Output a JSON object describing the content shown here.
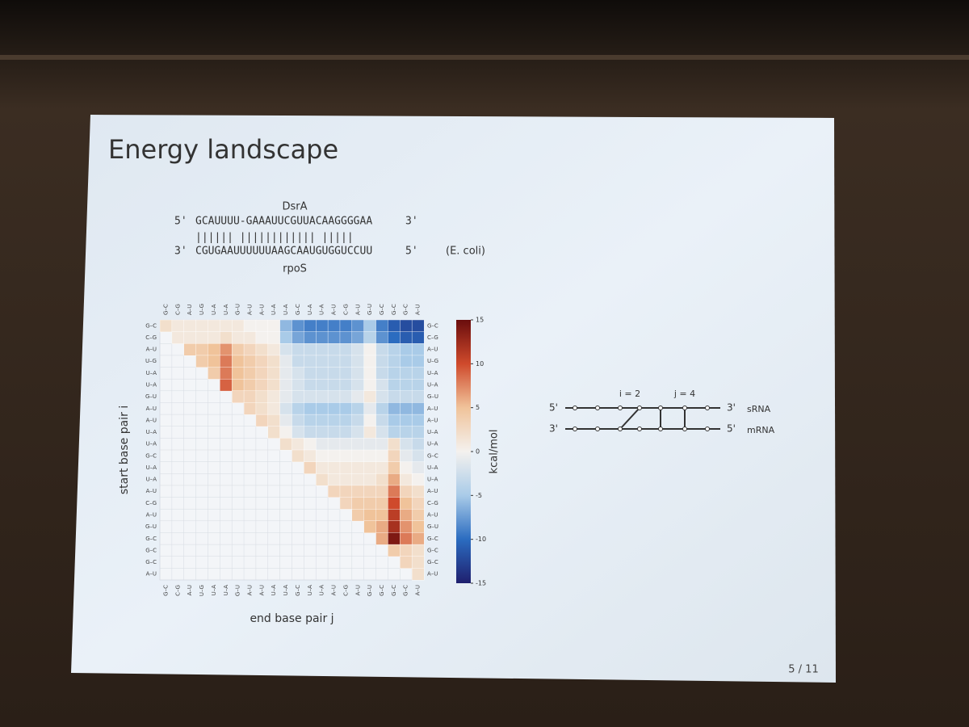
{
  "slide": {
    "title": "Energy landscape",
    "page": "5 / 11",
    "duplex": {
      "top_name": "DsrA",
      "top_5": "5'",
      "top_seq": "GCAUUUU-GAAAUUCGUUACAAGGGGAA",
      "top_3": "3'",
      "pairs": "||||||  ||||||||||||  |||||",
      "bottom_3": "3'",
      "bottom_seq": "CGUGAAUUUUUUAAGCAAUGUGGUCCUU",
      "bottom_5": "5'",
      "organism": "(E. coli)",
      "bottom_name": "rpoS"
    },
    "diagram": {
      "i_label": "i = 2",
      "j_label": "j = 4",
      "top_left": "5'",
      "top_right": "3'",
      "top_name": "sRNA",
      "bottom_left": "3'",
      "bottom_right": "5'",
      "bottom_name": "mRNA"
    }
  },
  "chart_data": {
    "type": "heatmap",
    "xlabel": "end base pair j",
    "ylabel": "start base pair i",
    "categories": [
      "G–C",
      "C–G",
      "A–U",
      "U–G",
      "U–A",
      "U–A",
      "G–U",
      "A–U",
      "A–U",
      "U–A",
      "U–A",
      "G–C",
      "U–A",
      "U–A",
      "A–U",
      "C–G",
      "A–U",
      "G–U",
      "G–C",
      "G–C",
      "G–C",
      "A–U"
    ],
    "values": [
      [
        2,
        1,
        1,
        1,
        1,
        1,
        1,
        0,
        0,
        0,
        -6,
        -8,
        -9,
        -9,
        -9,
        -9,
        -8,
        -5,
        -9,
        -11,
        -12,
        -12
      ],
      [
        null,
        1,
        1,
        1,
        1,
        2,
        1,
        1,
        0,
        0,
        -5,
        -7,
        -8,
        -8,
        -8,
        -8,
        -7,
        -4,
        -8,
        -10,
        -11,
        -11
      ],
      [
        null,
        null,
        4,
        4,
        5,
        7,
        4,
        3,
        2,
        1,
        -2,
        -3,
        -3,
        -3,
        -3,
        -3,
        -2,
        0,
        -3,
        -4,
        -5,
        -5
      ],
      [
        null,
        null,
        null,
        4,
        5,
        8,
        5,
        4,
        3,
        2,
        -1,
        -3,
        -3,
        -3,
        -3,
        -3,
        -2,
        0,
        -3,
        -4,
        -5,
        -5
      ],
      [
        null,
        null,
        null,
        null,
        4,
        8,
        5,
        4,
        3,
        2,
        -1,
        -2,
        -3,
        -3,
        -3,
        -3,
        -2,
        0,
        -3,
        -4,
        -4,
        -4
      ],
      [
        null,
        null,
        null,
        null,
        null,
        9,
        5,
        4,
        3,
        2,
        -1,
        -2,
        -3,
        -3,
        -3,
        -3,
        -2,
        0,
        -2,
        -4,
        -4,
        -4
      ],
      [
        null,
        null,
        null,
        null,
        null,
        null,
        3,
        3,
        2,
        1,
        -1,
        -2,
        -2,
        -2,
        -2,
        -2,
        -1,
        1,
        -2,
        -3,
        -3,
        -3
      ],
      [
        null,
        null,
        null,
        null,
        null,
        null,
        null,
        3,
        2,
        1,
        -2,
        -4,
        -5,
        -5,
        -5,
        -5,
        -4,
        -1,
        -4,
        -6,
        -6,
        -6
      ],
      [
        null,
        null,
        null,
        null,
        null,
        null,
        null,
        null,
        3,
        2,
        -1,
        -3,
        -4,
        -4,
        -4,
        -4,
        -3,
        0,
        -3,
        -5,
        -5,
        -5
      ],
      [
        null,
        null,
        null,
        null,
        null,
        null,
        null,
        null,
        null,
        2,
        0,
        -2,
        -3,
        -3,
        -3,
        -3,
        -2,
        1,
        -2,
        -4,
        -4,
        -4
      ],
      [
        null,
        null,
        null,
        null,
        null,
        null,
        null,
        null,
        null,
        null,
        2,
        1,
        0,
        -1,
        -1,
        -1,
        -1,
        -1,
        -1,
        2,
        -2,
        -3
      ],
      [
        null,
        null,
        null,
        null,
        null,
        null,
        null,
        null,
        null,
        null,
        null,
        2,
        1,
        0,
        0,
        0,
        0,
        0,
        0,
        3,
        -1,
        -2
      ],
      [
        null,
        null,
        null,
        null,
        null,
        null,
        null,
        null,
        null,
        null,
        null,
        null,
        3,
        1,
        1,
        1,
        1,
        1,
        1,
        4,
        0,
        -1
      ],
      [
        null,
        null,
        null,
        null,
        null,
        null,
        null,
        null,
        null,
        null,
        null,
        null,
        null,
        2,
        1,
        1,
        1,
        1,
        2,
        6,
        1,
        0
      ],
      [
        null,
        null,
        null,
        null,
        null,
        null,
        null,
        null,
        null,
        null,
        null,
        null,
        null,
        null,
        3,
        3,
        3,
        3,
        3,
        8,
        3,
        2
      ],
      [
        null,
        null,
        null,
        null,
        null,
        null,
        null,
        null,
        null,
        null,
        null,
        null,
        null,
        null,
        null,
        3,
        4,
        4,
        4,
        10,
        5,
        3
      ],
      [
        null,
        null,
        null,
        null,
        null,
        null,
        null,
        null,
        null,
        null,
        null,
        null,
        null,
        null,
        null,
        null,
        4,
        5,
        5,
        11,
        6,
        4
      ],
      [
        null,
        null,
        null,
        null,
        null,
        null,
        null,
        null,
        null,
        null,
        null,
        null,
        null,
        null,
        null,
        null,
        null,
        5,
        6,
        12,
        7,
        5
      ],
      [
        null,
        null,
        null,
        null,
        null,
        null,
        null,
        null,
        null,
        null,
        null,
        null,
        null,
        null,
        null,
        null,
        null,
        null,
        6,
        14,
        8,
        6
      ],
      [
        null,
        null,
        null,
        null,
        null,
        null,
        null,
        null,
        null,
        null,
        null,
        null,
        null,
        null,
        null,
        null,
        null,
        null,
        null,
        4,
        3,
        2
      ],
      [
        null,
        null,
        null,
        null,
        null,
        null,
        null,
        null,
        null,
        null,
        null,
        null,
        null,
        null,
        null,
        null,
        null,
        null,
        null,
        null,
        3,
        2
      ],
      [
        null,
        null,
        null,
        null,
        null,
        null,
        null,
        null,
        null,
        null,
        null,
        null,
        null,
        null,
        null,
        null,
        null,
        null,
        null,
        null,
        null,
        2
      ]
    ],
    "zlim": [
      -15,
      15
    ],
    "zticks": [
      15,
      10,
      5,
      0,
      -5,
      -10,
      -15
    ],
    "zlabel": "kcal/mol",
    "colormap": [
      "#1f1f6e",
      "#2b6cc0",
      "#a9cbe8",
      "#f4f1ee",
      "#f0c39a",
      "#cf4a2c",
      "#6a0d0d"
    ]
  }
}
